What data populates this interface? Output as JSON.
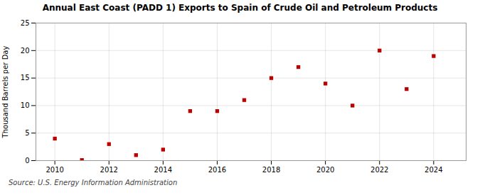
{
  "chart_data": {
    "type": "scatter",
    "title": "Annual East Coast (PADD 1) Exports to Spain of Crude Oil and Petroleum Products",
    "ylabel": "Thousand Barrels per Day",
    "source": "Source: U.S. Energy Information Administration",
    "x": [
      2010,
      2011,
      2012,
      2013,
      2014,
      2015,
      2016,
      2017,
      2018,
      2019,
      2020,
      2021,
      2022,
      2023,
      2024
    ],
    "values": [
      4.0,
      0.1,
      3.0,
      1.0,
      2.0,
      9.0,
      9.0,
      11.0,
      15.0,
      17.0,
      14.0,
      10.0,
      20.0,
      13.0,
      19.0
    ],
    "color": "#bb0000",
    "marker": "square",
    "xlim": [
      2009.3,
      2025.2
    ],
    "ylim": [
      0,
      25
    ],
    "xticks": [
      2010,
      2012,
      2014,
      2016,
      2018,
      2020,
      2022,
      2024
    ],
    "yticks": [
      0,
      5,
      10,
      15,
      20,
      25
    ],
    "grid": true
  }
}
